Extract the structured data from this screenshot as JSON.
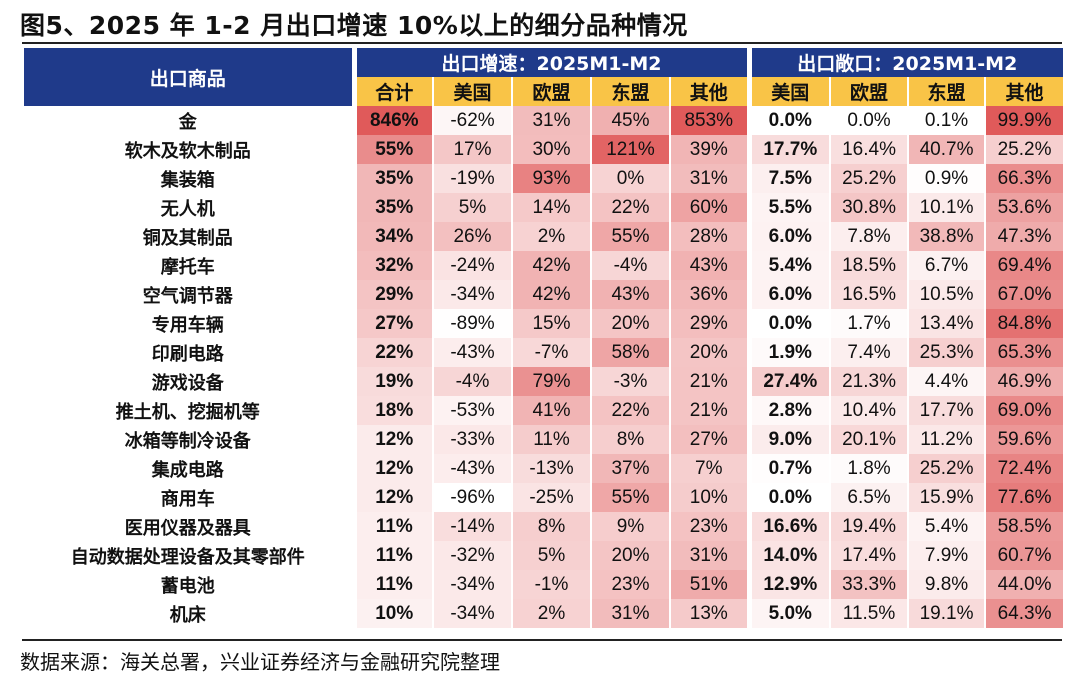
{
  "title": "图5、2025 年 1-2 月出口增速 10%以上的细分品种情况",
  "source": "数据来源：海关总署，兴业证券经济与金融研究院整理",
  "colors": {
    "header_bg": "#1f3a8a",
    "subheader_bg": "#f9c447",
    "heat_low": "#ffffff",
    "heat_high": "#e05a5a"
  },
  "chart_data": {
    "type": "table",
    "row_header": "出口商品",
    "groups": [
      {
        "label": "出口增速：2025M1-M2",
        "columns": [
          "合计",
          "美国",
          "欧盟",
          "东盟",
          "其他"
        ]
      },
      {
        "label": "出口敞口：2025M1-M2",
        "columns": [
          "美国",
          "欧盟",
          "东盟",
          "其他"
        ]
      }
    ],
    "rows": [
      {
        "name": "金",
        "growth": [
          "846%",
          "-62%",
          "31%",
          "45%",
          "853%"
        ],
        "share": [
          "0.0%",
          "0.0%",
          "0.1%",
          "99.9%"
        ]
      },
      {
        "name": "软木及软木制品",
        "growth": [
          "55%",
          "17%",
          "30%",
          "121%",
          "39%"
        ],
        "share": [
          "17.7%",
          "16.4%",
          "40.7%",
          "25.2%"
        ]
      },
      {
        "name": "集装箱",
        "growth": [
          "35%",
          "-19%",
          "93%",
          "0%",
          "31%"
        ],
        "share": [
          "7.5%",
          "25.2%",
          "0.9%",
          "66.3%"
        ]
      },
      {
        "name": "无人机",
        "growth": [
          "35%",
          "5%",
          "14%",
          "22%",
          "60%"
        ],
        "share": [
          "5.5%",
          "30.8%",
          "10.1%",
          "53.6%"
        ]
      },
      {
        "name": "铜及其制品",
        "growth": [
          "34%",
          "26%",
          "2%",
          "55%",
          "28%"
        ],
        "share": [
          "6.0%",
          "7.8%",
          "38.8%",
          "47.3%"
        ]
      },
      {
        "name": "摩托车",
        "growth": [
          "32%",
          "-24%",
          "42%",
          "-4%",
          "43%"
        ],
        "share": [
          "5.4%",
          "18.5%",
          "6.7%",
          "69.4%"
        ]
      },
      {
        "name": "空气调节器",
        "growth": [
          "29%",
          "-34%",
          "42%",
          "43%",
          "36%"
        ],
        "share": [
          "6.0%",
          "16.5%",
          "10.5%",
          "67.0%"
        ]
      },
      {
        "name": "专用车辆",
        "growth": [
          "27%",
          "-89%",
          "15%",
          "20%",
          "29%"
        ],
        "share": [
          "0.0%",
          "1.7%",
          "13.4%",
          "84.8%"
        ]
      },
      {
        "name": "印刷电路",
        "growth": [
          "22%",
          "-43%",
          "-7%",
          "58%",
          "20%"
        ],
        "share": [
          "1.9%",
          "7.4%",
          "25.3%",
          "65.3%"
        ]
      },
      {
        "name": "游戏设备",
        "growth": [
          "19%",
          "-4%",
          "79%",
          "-3%",
          "21%"
        ],
        "share": [
          "27.4%",
          "21.3%",
          "4.4%",
          "46.9%"
        ]
      },
      {
        "name": "推土机、挖掘机等",
        "growth": [
          "18%",
          "-53%",
          "41%",
          "22%",
          "21%"
        ],
        "share": [
          "2.8%",
          "10.4%",
          "17.7%",
          "69.0%"
        ]
      },
      {
        "name": "冰箱等制冷设备",
        "growth": [
          "12%",
          "-33%",
          "11%",
          "8%",
          "27%"
        ],
        "share": [
          "9.0%",
          "20.1%",
          "11.2%",
          "59.6%"
        ]
      },
      {
        "name": "集成电路",
        "growth": [
          "12%",
          "-43%",
          "-13%",
          "37%",
          "7%"
        ],
        "share": [
          "0.7%",
          "1.8%",
          "25.2%",
          "72.4%"
        ]
      },
      {
        "name": "商用车",
        "growth": [
          "12%",
          "-96%",
          "-25%",
          "55%",
          "10%"
        ],
        "share": [
          "0.0%",
          "6.5%",
          "15.9%",
          "77.6%"
        ]
      },
      {
        "name": "医用仪器及器具",
        "growth": [
          "11%",
          "-14%",
          "8%",
          "9%",
          "23%"
        ],
        "share": [
          "16.6%",
          "19.4%",
          "5.4%",
          "58.5%"
        ]
      },
      {
        "name": "自动数据处理设备及其零部件",
        "growth": [
          "11%",
          "-32%",
          "5%",
          "20%",
          "31%"
        ],
        "share": [
          "14.0%",
          "17.4%",
          "7.9%",
          "60.7%"
        ]
      },
      {
        "name": "蓄电池",
        "growth": [
          "11%",
          "-34%",
          "-1%",
          "23%",
          "51%"
        ],
        "share": [
          "12.9%",
          "33.3%",
          "9.8%",
          "44.0%"
        ]
      },
      {
        "name": "机床",
        "growth": [
          "10%",
          "-34%",
          "2%",
          "31%",
          "13%"
        ],
        "share": [
          "5.0%",
          "11.5%",
          "19.1%",
          "64.3%"
        ]
      }
    ]
  }
}
